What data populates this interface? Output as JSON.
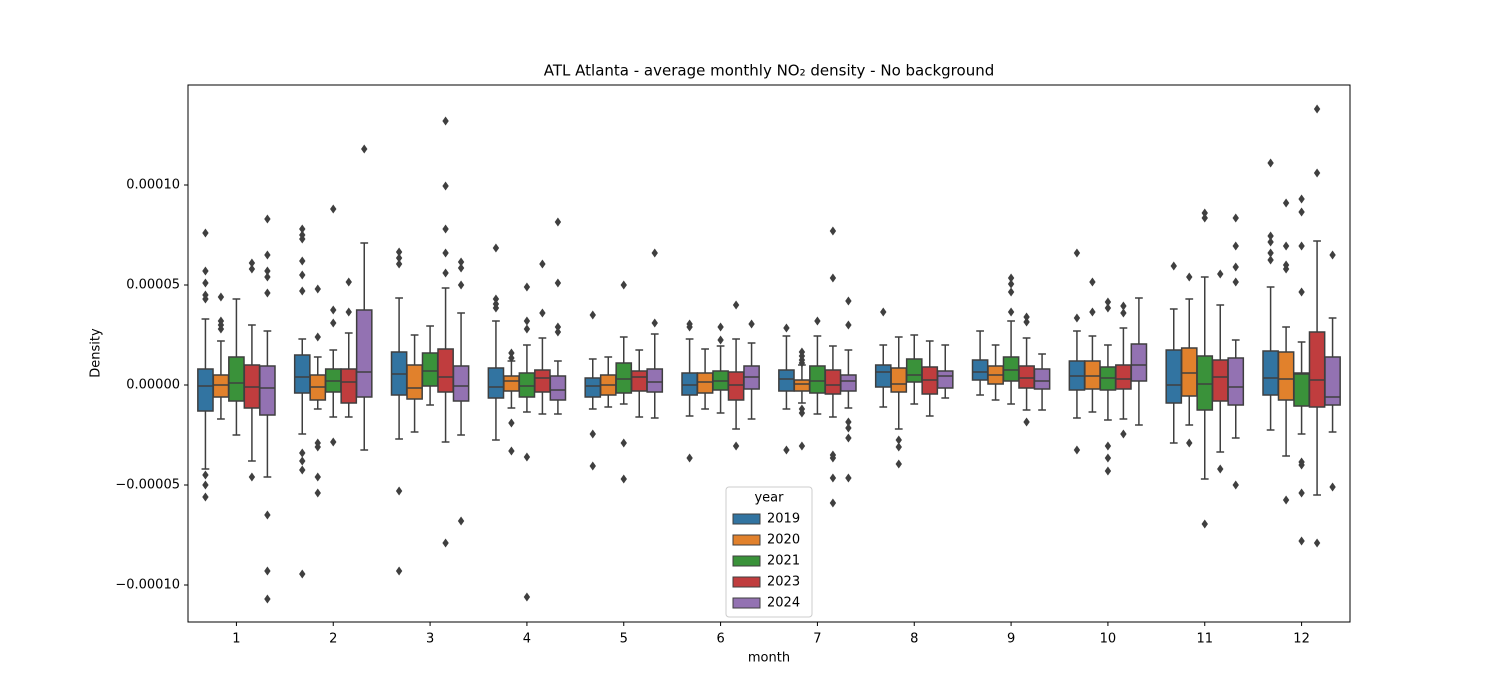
{
  "chart_data": {
    "type": "box",
    "title": "ATL Atlanta - average monthly NO₂ density - No background",
    "x_label": "month",
    "y_label": "Density",
    "categories": [
      "1",
      "2",
      "3",
      "4",
      "5",
      "6",
      "7",
      "8",
      "9",
      "10",
      "11",
      "12"
    ],
    "ylim": [
      -0.0001185,
      0.00015
    ],
    "yticks": [
      {
        "value": -0.0001,
        "label": "−0.00010"
      },
      {
        "value": -5e-05,
        "label": "−0.00005"
      },
      {
        "value": 0,
        "label": "0.00000"
      },
      {
        "value": 5e-05,
        "label": "0.00005"
      },
      {
        "value": 0.0001,
        "label": "0.00010"
      }
    ],
    "legend_title": "year",
    "legend_loc": "lower center",
    "series": [
      {
        "name": "2019",
        "color": "#3274a1",
        "stats": [
          [
            -4.2e-05,
            -1.3e-05,
            -5e-07,
            8e-06,
            3.3e-05
          ],
          [
            -2.45e-05,
            -4e-06,
            4e-06,
            1.5e-05,
            2.3e-05
          ],
          [
            -2.7e-05,
            -5e-06,
            5.5e-06,
            1.65e-05,
            4.35e-05
          ],
          [
            -2.75e-05,
            -6.5e-06,
            -1e-06,
            8.5e-06,
            3.2e-05
          ],
          [
            -1.2e-05,
            -6e-06,
            -5e-07,
            3.5e-06,
            1.3e-05
          ],
          [
            -1.55e-05,
            -5e-06,
            0,
            6e-06,
            2.3e-05
          ],
          [
            -1.2e-05,
            -3e-06,
            3e-06,
            7.5e-06,
            2.45e-05
          ],
          [
            -1.1e-05,
            -1e-06,
            6.5e-06,
            1e-05,
            2e-05
          ],
          [
            -5e-06,
            2.5e-06,
            6.5e-06,
            1.25e-05,
            2.7e-05
          ],
          [
            -1.65e-05,
            -2.5e-06,
            4.5e-06,
            1.2e-05,
            2.7e-05
          ],
          [
            -2.9e-05,
            -9e-06,
            0,
            1.75e-05,
            3.8e-05
          ],
          [
            -2.25e-05,
            -5e-06,
            3.5e-06,
            1.7e-05,
            4.9e-05
          ]
        ],
        "fliers": [
          [
            7.6e-05,
            5.7e-05,
            5.1e-05,
            4.5e-05,
            4.3e-05,
            -4.5e-05,
            -5e-05,
            -5.6e-05
          ],
          [
            7.8e-05,
            7.5e-05,
            7.3e-05,
            6.2e-05,
            5.5e-05,
            4.7e-05,
            -3.4e-05,
            -3.8e-05,
            -4.25e-05,
            -9.45e-05
          ],
          [
            6.65e-05,
            6.35e-05,
            6.05e-05,
            -5.3e-05,
            -9.3e-05
          ],
          [
            6.85e-05,
            4.3e-05,
            4.05e-05,
            3.85e-05
          ],
          [
            3.5e-05,
            -2.45e-05,
            -4.05e-05
          ],
          [
            3.05e-05,
            2.9e-05,
            -3.65e-05
          ],
          [
            2.85e-05,
            -3.25e-05
          ],
          [
            3.65e-05
          ],
          [],
          [
            6.6e-05,
            3.35e-05,
            -3.25e-05
          ],
          [
            5.95e-05
          ],
          [
            0.000111,
            7.45e-05,
            7.15e-05,
            6.6e-05,
            6.25e-05
          ]
        ]
      },
      {
        "name": "2020",
        "color": "#e1812c",
        "stats": [
          [
            -1.7e-05,
            -6e-06,
            0,
            5e-06,
            2.2e-05
          ],
          [
            -1.2e-05,
            -7.5e-06,
            -1e-06,
            5e-06,
            1.4e-05
          ],
          [
            -2.35e-05,
            -7e-06,
            -1.5e-06,
            1e-05,
            2.5e-05
          ],
          [
            -1.15e-05,
            -3e-06,
            2e-06,
            4.5e-06,
            1.2e-05
          ],
          [
            -1.1e-05,
            -5e-06,
            0,
            5e-06,
            1.4e-05
          ],
          [
            -1.2e-05,
            -4e-06,
            1.5e-06,
            6e-06,
            1.8e-05
          ],
          [
            -9e-06,
            -3e-06,
            5e-07,
            2.5e-06,
            1e-05
          ],
          [
            -2.2e-05,
            -3.5e-06,
            5e-07,
            8.5e-06,
            2.4e-05
          ],
          [
            -7.5e-06,
            5e-07,
            5e-06,
            9.5e-06,
            2e-05
          ],
          [
            -1.35e-05,
            -2e-06,
            4.5e-06,
            1.2e-05,
            2.45e-05
          ],
          [
            -2e-05,
            -5.5e-06,
            6e-06,
            1.85e-05,
            4.3e-05
          ],
          [
            -3.55e-05,
            -7.5e-06,
            3e-06,
            1.65e-05,
            2.9e-05
          ]
        ],
        "fliers": [
          [
            4.4e-05,
            3.2e-05,
            3e-05,
            2.8e-05
          ],
          [
            4.8e-05,
            2.4e-05,
            -2.9e-05,
            -3.1e-05,
            -4.6e-05,
            -5.4e-05
          ],
          [],
          [
            1.6e-05,
            1.35e-05,
            -1.9e-05,
            -3.3e-05
          ],
          [],
          [],
          [
            1.65e-05,
            1.45e-05,
            1.25e-05,
            1.1e-05,
            -1.2e-05,
            -1.4e-05,
            -3.05e-05
          ],
          [
            -2.75e-05,
            -3.1e-05,
            -3.95e-05
          ],
          [],
          [
            5.15e-05,
            3.65e-05
          ],
          [
            5.4e-05,
            -2.9e-05
          ],
          [
            9.1e-05,
            6.95e-05,
            6e-05,
            5.8e-05,
            -5.75e-05
          ]
        ]
      },
      {
        "name": "2021",
        "color": "#3a923a",
        "stats": [
          [
            -2.5e-05,
            -8e-06,
            1e-06,
            1.4e-05,
            4.3e-05
          ],
          [
            -1.6e-05,
            -3.5e-06,
            2e-06,
            8e-06,
            1.75e-05
          ],
          [
            -1e-05,
            -5e-07,
            7e-06,
            1.6e-05,
            2.95e-05
          ],
          [
            -1.35e-05,
            -6e-06,
            -5e-07,
            6e-06,
            2e-05
          ],
          [
            -9.5e-06,
            -4e-06,
            3e-06,
            1.1e-05,
            2.4e-05
          ],
          [
            -1.4e-05,
            -2.5e-06,
            2e-06,
            7e-06,
            1.95e-05
          ],
          [
            -1.45e-05,
            -4e-06,
            2e-06,
            9.5e-06,
            2.45e-05
          ],
          [
            -9.5e-06,
            1.5e-06,
            5e-06,
            1.3e-05,
            2.5e-05
          ],
          [
            -9.5e-06,
            2e-06,
            7.5e-06,
            1.4e-05,
            3.2e-05
          ],
          [
            -1.75e-05,
            -2.5e-06,
            3.5e-06,
            9e-06,
            2e-05
          ],
          [
            -4.7e-05,
            -1.25e-05,
            5e-07,
            1.45e-05,
            5.4e-05
          ],
          [
            -2.45e-05,
            -1.05e-05,
            5.5e-06,
            6e-06,
            2.15e-05
          ]
        ],
        "fliers": [
          [],
          [
            8.8e-05,
            3.75e-05,
            3.1e-05,
            -2.85e-05
          ],
          [],
          [
            4.9e-05,
            3.2e-05,
            2.8e-05,
            -3.6e-05,
            -0.000106
          ],
          [
            5e-05,
            -2.9e-05,
            -4.7e-05
          ],
          [
            2.9e-05,
            2.25e-05
          ],
          [
            3.2e-05
          ],
          [],
          [
            5.35e-05,
            5.05e-05,
            4.65e-05,
            3.65e-05
          ],
          [
            4.15e-05,
            3.85e-05,
            -3.05e-05,
            -3.65e-05,
            -4.3e-05
          ],
          [
            8.6e-05,
            8.35e-05,
            -6.95e-05
          ],
          [
            9.3e-05,
            8.65e-05,
            6.95e-05,
            4.65e-05,
            -3.85e-05,
            -4e-05,
            -5.4e-05,
            -7.8e-05
          ]
        ]
      },
      {
        "name": "2023",
        "color": "#c03d3e",
        "stats": [
          [
            -3.8e-05,
            -1.15e-05,
            -1e-06,
            1e-05,
            3e-05
          ],
          [
            -1.6e-05,
            -9e-06,
            1.5e-06,
            8e-06,
            2.6e-05
          ],
          [
            -2.85e-05,
            -3.5e-06,
            4e-06,
            1.8e-05,
            4.85e-05
          ],
          [
            -1.45e-05,
            -3.5e-06,
            3.5e-06,
            7.5e-06,
            2.35e-05
          ],
          [
            -1.6e-05,
            -3e-06,
            4e-06,
            7e-06,
            1.75e-05
          ],
          [
            -2.2e-05,
            -7.5e-06,
            0,
            6.5e-06,
            2.3e-05
          ],
          [
            -1.6e-05,
            -4.5e-06,
            0,
            7.5e-06,
            1.95e-05
          ],
          [
            -1.55e-05,
            -4.5e-06,
            2.5e-06,
            9e-06,
            2.2e-05
          ],
          [
            -1.25e-05,
            -1.5e-06,
            3.5e-06,
            9.5e-06,
            2.35e-05
          ],
          [
            -1.7e-05,
            -2e-06,
            3e-06,
            1e-05,
            2.85e-05
          ],
          [
            -3.35e-05,
            -8e-06,
            4e-06,
            1.25e-05,
            4e-05
          ],
          [
            -5.5e-05,
            -1.1e-05,
            2.5e-06,
            2.65e-05,
            7.2e-05
          ]
        ],
        "fliers": [
          [
            6.1e-05,
            5.8e-05,
            -4.6e-05
          ],
          [
            5.15e-05,
            3.65e-05
          ],
          [
            0.000132,
            9.95e-05,
            7.8e-05,
            6.6e-05,
            5.6e-05,
            -7.9e-05
          ],
          [
            6.05e-05,
            3.6e-05
          ],
          [],
          [
            4e-05,
            -3.05e-05
          ],
          [
            7.7e-05,
            5.35e-05,
            -3.5e-05,
            -3.65e-05,
            -4.65e-05,
            -5.9e-05
          ],
          [],
          [
            3.4e-05,
            3.15e-05,
            -1.85e-05
          ],
          [
            3.95e-05,
            3.6e-05,
            -2.45e-05
          ],
          [
            5.55e-05,
            -4.2e-05
          ],
          [
            0.000138,
            0.000106,
            -7.9e-05
          ]
        ]
      },
      {
        "name": "2024",
        "color": "#9372b2",
        "stats": [
          [
            -4.6e-05,
            -1.5e-05,
            -1.5e-06,
            9.5e-06,
            2.7e-05
          ],
          [
            -3.25e-05,
            -6e-06,
            6.5e-06,
            3.75e-05,
            7.1e-05
          ],
          [
            -2.5e-05,
            -8e-06,
            -5e-07,
            9.5e-06,
            3.6e-05
          ],
          [
            -1.45e-05,
            -7.5e-06,
            -2.5e-06,
            4.5e-06,
            1.2e-05
          ],
          [
            -1.65e-05,
            -3.5e-06,
            1.5e-06,
            8e-06,
            2.55e-05
          ],
          [
            -1.7e-05,
            -2e-06,
            4e-06,
            9.5e-06,
            2.1e-05
          ],
          [
            -1.15e-05,
            -3e-06,
            2e-06,
            5e-06,
            1.75e-05
          ],
          [
            -6.5e-06,
            -1.5e-06,
            4.5e-06,
            7e-06,
            2e-05
          ],
          [
            -1.25e-05,
            -2e-06,
            2e-06,
            8e-06,
            1.55e-05
          ],
          [
            -2e-05,
            2e-06,
            1e-05,
            2.05e-05,
            4.35e-05
          ],
          [
            -2.65e-05,
            -1e-05,
            -1e-06,
            1.35e-05,
            2.25e-05
          ],
          [
            -2.35e-05,
            -1e-05,
            -6e-06,
            1.4e-05,
            3.35e-05
          ]
        ],
        "fliers": [
          [
            8.3e-05,
            6.5e-05,
            5.7e-05,
            5.4e-05,
            4.6e-05,
            -6.5e-05,
            -9.3e-05,
            -0.000107
          ],
          [
            0.000118
          ],
          [
            6.15e-05,
            5.85e-05,
            5e-05,
            -6.8e-05
          ],
          [
            8.15e-05,
            5.1e-05,
            2.9e-05,
            2.65e-05
          ],
          [
            6.6e-05,
            3.1e-05
          ],
          [
            3.05e-05
          ],
          [
            4.2e-05,
            3e-05,
            -1.85e-05,
            -2.15e-05,
            -2.65e-05,
            -4.65e-05
          ],
          [],
          [],
          [],
          [
            8.35e-05,
            6.95e-05,
            5.9e-05,
            5.15e-05,
            -5e-05
          ],
          [
            6.5e-05,
            -5.1e-05
          ]
        ]
      }
    ]
  }
}
